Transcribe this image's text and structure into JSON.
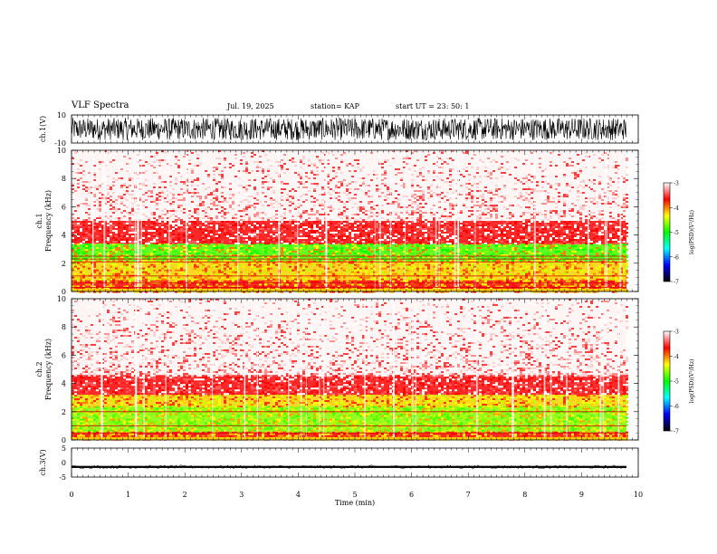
{
  "header": {
    "title": "VLF Spectra",
    "date": "Jul. 19, 2025",
    "station": "station= KAP",
    "start": "start UT =   23: 50: 1"
  },
  "colorbar": {
    "label": "log(PSD)(V²/Hz)",
    "ticks": [
      "-3",
      "-4",
      "-5",
      "-6",
      "-7"
    ],
    "colors": [
      "#ffffff",
      "#ff0000",
      "#ffff00",
      "#00ff00",
      "#00ffff",
      "#0000ff",
      "#000000"
    ]
  },
  "chart_data": [
    {
      "type": "line",
      "name": "ch1-waveform",
      "ylabel": "ch.1(V)",
      "ylim": [
        -10,
        10
      ],
      "ytick_labels": [
        "10",
        "-10"
      ],
      "description_values": {
        "mean": 0,
        "amplitude_approx": 8
      }
    },
    {
      "type": "heatmap",
      "name": "ch1-spectrogram",
      "ylabel": "ch.1 Frequency (kHz)",
      "ylim": [
        0,
        10
      ],
      "yticks": [
        "0",
        "2",
        "4",
        "6",
        "8",
        "10"
      ],
      "bands_khz": [
        {
          "from": 0,
          "to": 0.8,
          "level": "red-yellow"
        },
        {
          "from": 0.8,
          "to": 2.2,
          "level": "yellow"
        },
        {
          "from": 2.2,
          "to": 3.4,
          "level": "green"
        },
        {
          "from": 3.4,
          "to": 5.0,
          "level": "red"
        },
        {
          "from": 5.0,
          "to": 10,
          "level": "sparse-red"
        }
      ],
      "horizontal_lines_khz": [
        0.3,
        0.6,
        1.1,
        2.1,
        2.3,
        2.5
      ]
    },
    {
      "type": "heatmap",
      "name": "ch2-spectrogram",
      "ylabel": "ch.2 Frequency (kHz)",
      "ylim": [
        0,
        10
      ],
      "yticks": [
        "0",
        "2",
        "4",
        "6",
        "8",
        "10"
      ],
      "bands_khz": [
        {
          "from": 0,
          "to": 0.6,
          "level": "red-yellow"
        },
        {
          "from": 0.6,
          "to": 2.4,
          "level": "green-yellow"
        },
        {
          "from": 2.4,
          "to": 3.2,
          "level": "yellow"
        },
        {
          "from": 3.2,
          "to": 4.6,
          "level": "red"
        },
        {
          "from": 4.6,
          "to": 10,
          "level": "sparse-red"
        }
      ],
      "horizontal_lines_khz": [
        0.5,
        1.0,
        2.0
      ]
    },
    {
      "type": "line",
      "name": "ch3-waveform",
      "ylabel": "ch.3(V)",
      "ylim": [
        -5,
        5
      ],
      "ytick_labels": [
        "5",
        "0",
        "-5"
      ],
      "description_values": {
        "mean": -1.5,
        "amplitude_approx": 0.4
      }
    }
  ],
  "xaxis": {
    "label": "Time (min)",
    "xlim": [
      0,
      10
    ],
    "ticks": [
      "0",
      "1",
      "2",
      "3",
      "4",
      "5",
      "6",
      "7",
      "8",
      "9",
      "10"
    ],
    "data_end_min": 9.8
  }
}
